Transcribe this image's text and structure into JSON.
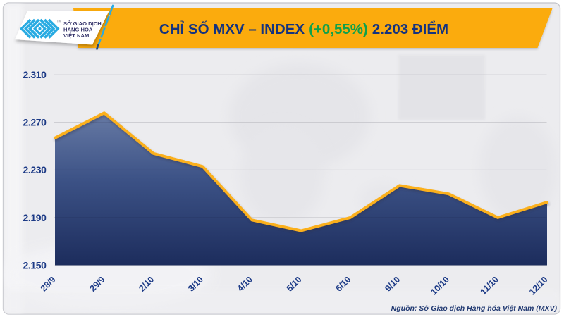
{
  "card": {
    "bg_color": "#ECECEF",
    "border_color": "#C2C3C9"
  },
  "logo": {
    "org_lines": [
      "SỞ GIAO DỊCH",
      "HÀNG HÓA",
      "VIỆT NAM"
    ],
    "trademark": "TM",
    "mark_color": "#29ABE2",
    "text_color": "#35346A"
  },
  "header": {
    "title_main": "CHỈ SỐ MXV – INDEX",
    "title_change": "(+0,55%)",
    "title_value": "2.203 ĐIỂM",
    "bar_color": "#FBAB10",
    "text_color": "#14337F",
    "change_color": "#0FA14B"
  },
  "source_note": "Nguồn: Sở Giao dịch Hàng hóa Việt Nam (MXV)",
  "chart_data": {
    "type": "area",
    "title": "CHỈ SỐ MXV – INDEX (+0,55%) 2.203 ĐIỂM",
    "categories": [
      "28/9",
      "29/9",
      "2/10",
      "3/10",
      "4/10",
      "5/10",
      "6/10",
      "9/10",
      "10/10",
      "11/10",
      "12/10"
    ],
    "values": [
      2257,
      2278,
      2244,
      2233,
      2188,
      2179,
      2190,
      2217,
      2210,
      2190,
      2203
    ],
    "y_ticks": [
      2310,
      2270,
      2230,
      2190,
      2150
    ],
    "y_tick_labels": [
      "2.310",
      "2.270",
      "2.230",
      "2.190",
      "2.150"
    ],
    "ylim": [
      2150,
      2310
    ],
    "xlabel": "",
    "ylabel": "",
    "grid": "horizontal",
    "legend": "none",
    "line_color": "#FBB01B",
    "area_top_color": "#697CA6",
    "area_bottom_color": "#1C2C5C",
    "grid_color": "#BCBCC2",
    "axis_label_color": "#1C3A86"
  }
}
